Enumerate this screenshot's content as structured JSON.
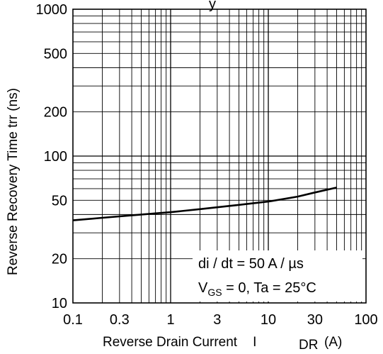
{
  "chart_data": {
    "type": "line",
    "title_fragment": "y",
    "xlabel": "Reverse Drain Current",
    "xlabel_symbol": "I",
    "xlabel_symbol_sub": "DR",
    "xlabel_unit": "(A)",
    "ylabel": "Reverse Recovery Time  trr  (ns)",
    "x_scale": "log",
    "y_scale": "log",
    "xlim": [
      0.1,
      100
    ],
    "ylim": [
      10,
      1000
    ],
    "grid": true,
    "x_tick_labels": [
      {
        "value": 0.1,
        "label": "0.1"
      },
      {
        "value": 0.3,
        "label": "0.3"
      },
      {
        "value": 1,
        "label": "1"
      },
      {
        "value": 3,
        "label": "3"
      },
      {
        "value": 10,
        "label": "10"
      },
      {
        "value": 30,
        "label": "30"
      },
      {
        "value": 100,
        "label": "100"
      }
    ],
    "y_tick_labels": [
      {
        "value": 10,
        "label": "10"
      },
      {
        "value": 20,
        "label": "20"
      },
      {
        "value": 50,
        "label": "50"
      },
      {
        "value": 100,
        "label": "100"
      },
      {
        "value": 200,
        "label": "200"
      },
      {
        "value": 500,
        "label": "500"
      },
      {
        "value": 1000,
        "label": "1000"
      }
    ],
    "annotations": {
      "line1": "di / dt = 50 A / µs",
      "line2_prefix": "V",
      "line2_sub": "GS",
      "line2_rest": " = 0, Ta = 25°C"
    },
    "series": [
      {
        "x": [
          0.1,
          0.2,
          0.5,
          1,
          2,
          5,
          10,
          20,
          30,
          50
        ],
        "y": [
          36.5,
          38,
          40,
          41.5,
          43.5,
          46.5,
          49,
          53,
          56.5,
          61
        ]
      }
    ]
  }
}
